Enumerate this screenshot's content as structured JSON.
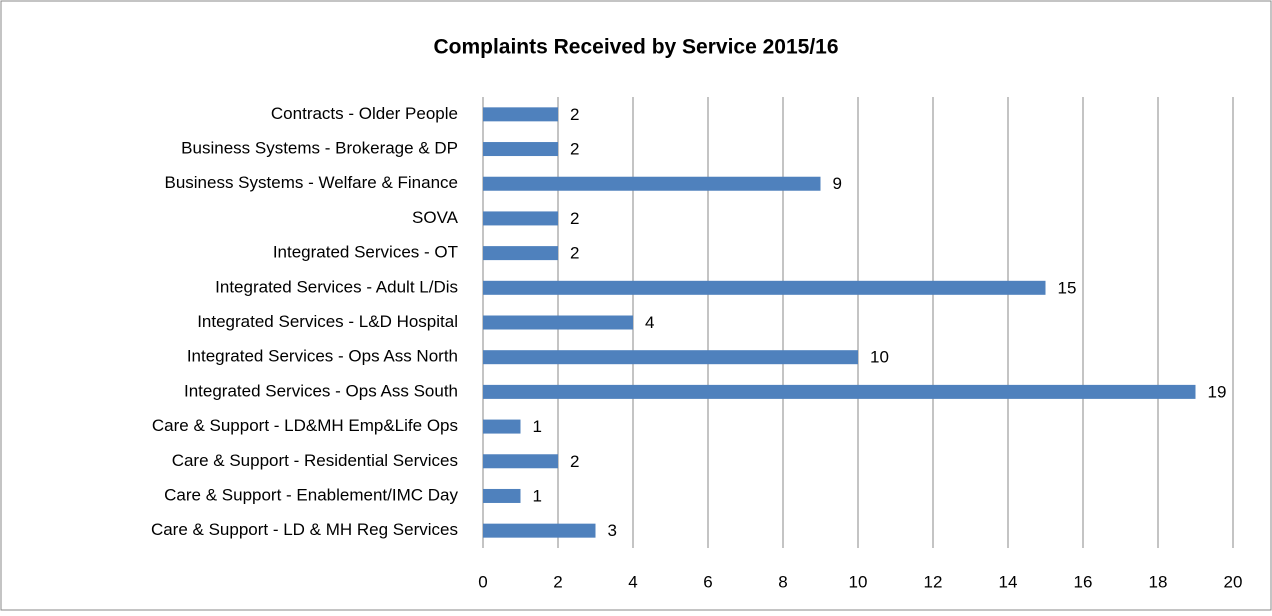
{
  "chart_data": {
    "type": "bar",
    "orientation": "horizontal",
    "title": "Complaints Received by Service 2015/16",
    "categories": [
      "Contracts - Older People",
      "Business Systems - Brokerage & DP",
      "Business Systems - Welfare & Finance",
      "SOVA",
      "Integrated Services - OT",
      "Integrated Services - Adult L/Dis",
      "Integrated Services - L&D Hospital",
      "Integrated Services - Ops Ass North",
      "Integrated Services - Ops Ass South",
      "Care & Support - LD&MH Emp&Life Ops",
      "Care & Support - Residential Services",
      "Care & Support - Enablement/IMC Day",
      "Care & Support - LD & MH Reg Services"
    ],
    "values": [
      2,
      2,
      9,
      2,
      2,
      15,
      4,
      10,
      19,
      1,
      2,
      1,
      3
    ],
    "color": "#4f81bd",
    "xlim": [
      0,
      20
    ],
    "xticks": [
      0,
      2,
      4,
      6,
      8,
      10,
      12,
      14,
      16,
      18,
      20
    ],
    "grid": true
  }
}
